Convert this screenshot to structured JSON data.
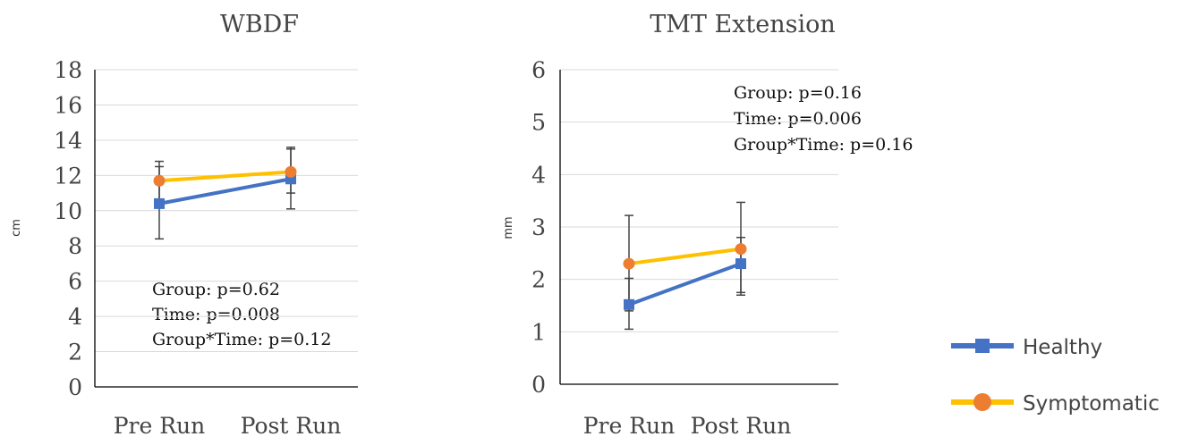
{
  "chart_data": [
    {
      "type": "line",
      "title": "WBDF",
      "ylabel": "cm",
      "xlabel": "",
      "categories": [
        "Pre Run",
        "Post Run"
      ],
      "ylim": [
        0,
        18
      ],
      "yticks": [
        0,
        2,
        4,
        6,
        8,
        10,
        12,
        14,
        16,
        18
      ],
      "grid": true,
      "series": [
        {
          "name": "Healthy",
          "color": "#4472C4",
          "marker": "square",
          "values": [
            10.4,
            11.8
          ],
          "err_low": [
            8.4,
            10.1
          ],
          "err_high": [
            12.5,
            13.5
          ]
        },
        {
          "name": "Symptomatic",
          "color": "#FFC000",
          "marker": "circle",
          "values": [
            11.7,
            12.2
          ],
          "err_low": [
            10.6,
            11.0
          ],
          "err_high": [
            12.8,
            13.6
          ]
        }
      ],
      "annotations": [
        "Group: p=0.62",
        "Time: p=0.008",
        "Group*Time: p=0.12"
      ]
    },
    {
      "type": "line",
      "title": "TMT Extension",
      "ylabel": "mm",
      "xlabel": "",
      "categories": [
        "Pre Run",
        "Post Run"
      ],
      "ylim": [
        0,
        6
      ],
      "yticks": [
        0,
        1,
        2,
        3,
        4,
        5,
        6
      ],
      "grid": true,
      "series": [
        {
          "name": "Healthy",
          "color": "#4472C4",
          "marker": "square",
          "values": [
            1.52,
            2.3
          ],
          "err_low": [
            1.05,
            1.75
          ],
          "err_high": [
            2.02,
            2.8
          ]
        },
        {
          "name": "Symptomatic",
          "color": "#FFC000",
          "marker": "circle",
          "values": [
            2.3,
            2.58
          ],
          "err_low": [
            1.4,
            1.7
          ],
          "err_high": [
            3.22,
            3.47
          ]
        }
      ],
      "annotations": [
        "Group: p=0.16",
        "Time: p=0.006",
        "Group*Time: p=0.16"
      ]
    }
  ],
  "legend": {
    "placement": "bottom-right",
    "items": [
      {
        "label": "Healthy",
        "color": "#4472C4",
        "marker": "square"
      },
      {
        "label": "Symptomatic",
        "color": "#FFC000",
        "marker_color": "#ED7D31",
        "marker": "circle"
      }
    ]
  }
}
